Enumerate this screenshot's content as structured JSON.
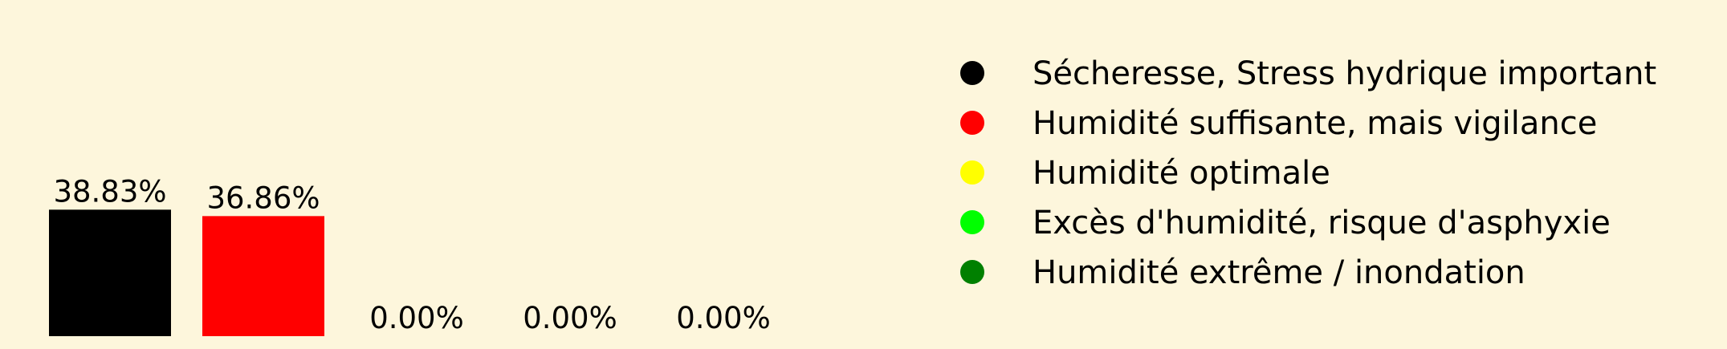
{
  "chart_data": {
    "type": "bar",
    "title": "",
    "xlabel": "",
    "ylabel": "",
    "ylim": [
      0,
      40
    ],
    "grid": false,
    "legend_position": "right",
    "categories": [
      "Sécheresse, Stress hydrique important",
      "Humidité suffisante, mais vigilance",
      "Humidité optimale",
      "Excès d'humidité, risque d'asphyxie",
      "Humidité extrême / inondation"
    ],
    "values": [
      38.83,
      36.86,
      0.0,
      0.0,
      0.0
    ],
    "data_labels": [
      "38.83%",
      "36.86%",
      "0.00%",
      "0.00%",
      "0.00%"
    ],
    "colors": [
      "#000000",
      "#ff0000",
      "#ffff00",
      "#00ff00",
      "#008000"
    ],
    "legend": [
      {
        "label": "Sécheresse, Stress hydrique important",
        "color": "#000000"
      },
      {
        "label": "Humidité suffisante, mais vigilance",
        "color": "#ff0000"
      },
      {
        "label": "Humidité optimale",
        "color": "#ffff00"
      },
      {
        "label": "Excès d'humidité, risque d'asphyxie",
        "color": "#00ff00"
      },
      {
        "label": "Humidité extrême / inondation",
        "color": "#008000"
      }
    ]
  }
}
